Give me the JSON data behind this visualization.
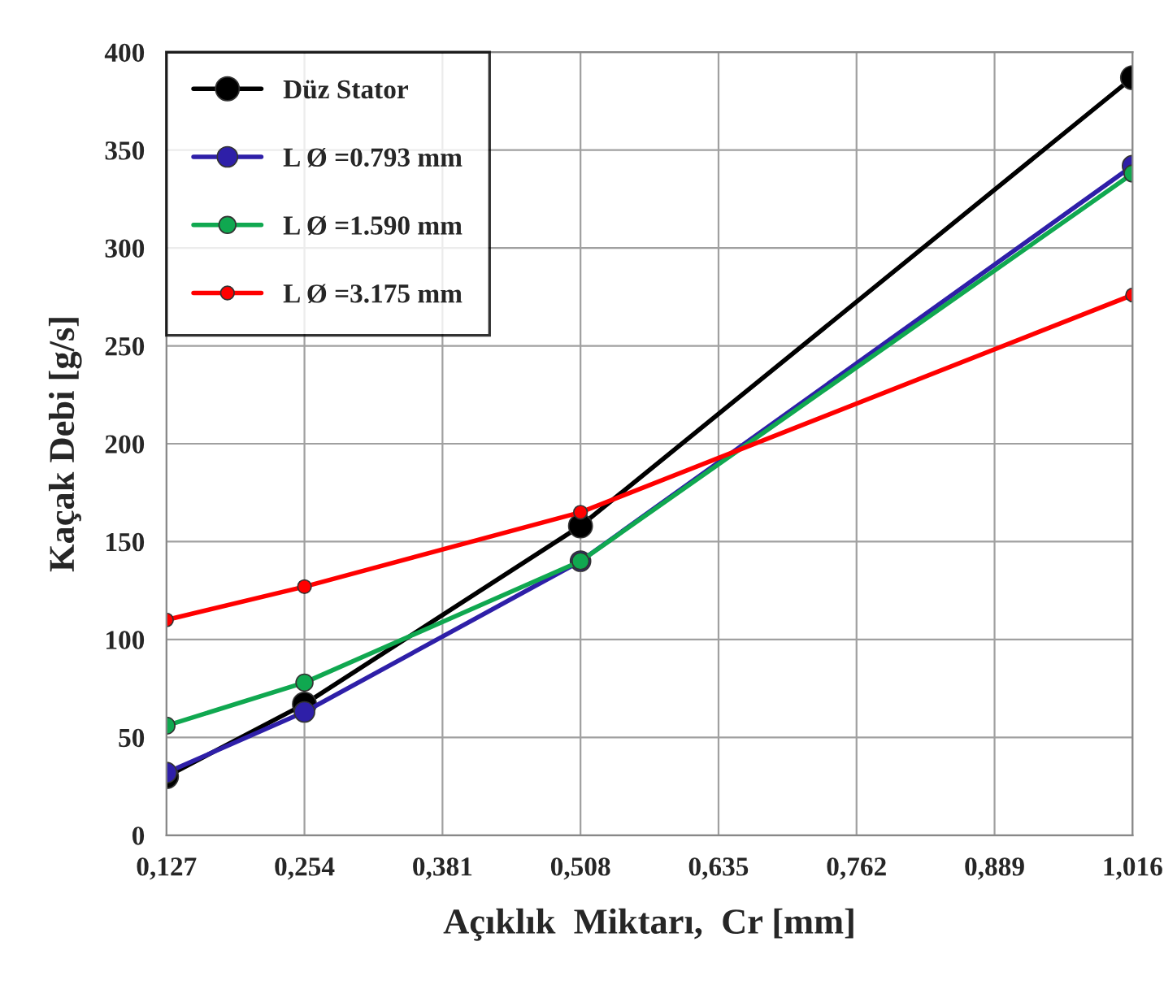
{
  "chart_data": {
    "type": "line",
    "xlabel": "Açıklık  Miktarı,  Cr [mm]",
    "ylabel": "Kaçak Debi [g/s]",
    "x": [
      0.127,
      0.254,
      0.508,
      1.016
    ],
    "series": [
      {
        "name": "Düz Stator",
        "color": "#000000",
        "values": [
          30,
          67,
          158,
          387
        ]
      },
      {
        "name": "L Ø =0.793 mm",
        "color": "#2e1fa8",
        "values": [
          32,
          63,
          140,
          342
        ]
      },
      {
        "name": "L Ø =1.590 mm",
        "color": "#10a850",
        "values": [
          56,
          78,
          140,
          338
        ]
      },
      {
        "name": "L Ø =3.175 mm",
        "color": "#ff0000",
        "values": [
          110,
          127,
          165,
          276
        ]
      }
    ],
    "xlim": [
      0.127,
      1.016
    ],
    "xticks": [
      {
        "value": 0.127,
        "label": "0,127"
      },
      {
        "value": 0.254,
        "label": "0,254"
      },
      {
        "value": 0.381,
        "label": "0,381"
      },
      {
        "value": 0.508,
        "label": "0,508"
      },
      {
        "value": 0.635,
        "label": "0,635"
      },
      {
        "value": 0.762,
        "label": "0,762"
      },
      {
        "value": 0.889,
        "label": "0,889"
      },
      {
        "value": 1.016,
        "label": "1,016"
      }
    ],
    "ylim": [
      0,
      400
    ],
    "yticks": [
      0,
      50,
      100,
      150,
      200,
      250,
      300,
      350,
      400
    ],
    "grid": true,
    "legend": "top left",
    "marker": "circle",
    "line_style": "solid"
  }
}
